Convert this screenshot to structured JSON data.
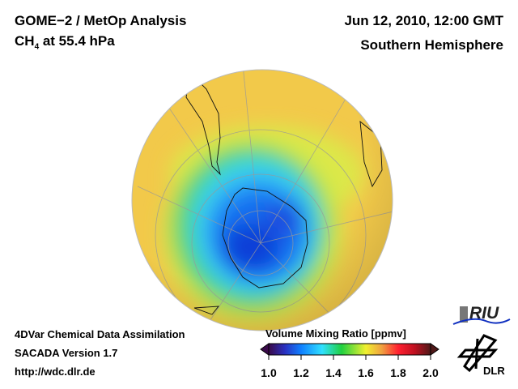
{
  "header": {
    "title": "GOME−2 / MetOp Analysis",
    "species_prefix": "CH",
    "species_sub": "4",
    "species_suffix": " at 55.4 hPa",
    "datetime": "Jun 12, 2010, 12:00 GMT",
    "hemisphere": "Southern Hemisphere"
  },
  "footer": {
    "line1": "4DVar Chemical Data Assimilation",
    "line2": "SACADA Version 1.7",
    "url": "http://wdc.dlr.de"
  },
  "colorbar": {
    "title": "Volume Mixing Ratio [ppmv]",
    "ticks": [
      "1.0",
      "1.2",
      "1.4",
      "1.6",
      "1.8",
      "2.0"
    ],
    "min": 1.0,
    "max": 2.0,
    "colors": [
      "#3a0a4a",
      "#2a30c0",
      "#1080ff",
      "#30e0ff",
      "#20d040",
      "#f0f030",
      "#f0a040",
      "#ff2030",
      "#e00010",
      "#501818"
    ]
  },
  "logos": {
    "riu": "RIU",
    "dlr": "DLR"
  }
}
